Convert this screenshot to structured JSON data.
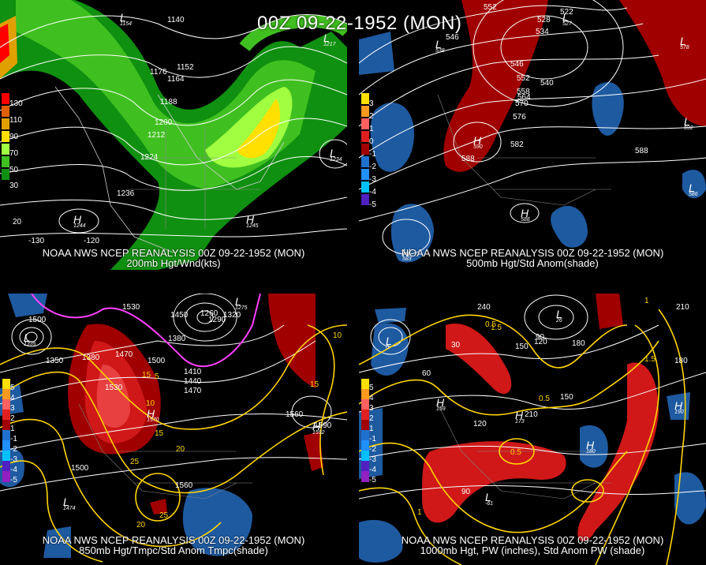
{
  "header": {
    "title": "00Z 09-22-1952 (MON)"
  },
  "panels": [
    {
      "caption1": "NOAA NWS NCEP REANALYSIS 00Z 09-22-1952 (MON)",
      "caption2": "200mb Hgt/Wnd(kts)",
      "legend": [
        "130",
        "110",
        "90",
        "70",
        "50",
        "30"
      ],
      "contours": [
        "1140",
        "1152",
        "1164",
        "1176",
        "1188",
        "1200",
        "1212",
        "1224",
        "1236"
      ],
      "centers": [
        {
          "t": "L",
          "v": "1154"
        },
        {
          "t": "L",
          "v": "1217"
        },
        {
          "t": "L",
          "v": "1234"
        },
        {
          "t": "H",
          "v": "1244"
        },
        {
          "t": "H",
          "v": "1245"
        }
      ],
      "lon": [
        "-130",
        "-120"
      ],
      "lat": "20"
    },
    {
      "caption1": "NOAA NWS NCEP REANALYSIS 00Z 09-22-1952 (MON)",
      "caption2": "500mb Hgt/Std Anom(shade)",
      "legend": [
        "3",
        "2",
        "1",
        "0",
        "-1",
        "-2",
        "-3",
        "-4",
        "-5"
      ],
      "contours": [
        "552",
        "528",
        "522",
        "534",
        "546",
        "540",
        "546",
        "552",
        "558",
        "564",
        "570",
        "576",
        "582",
        "588",
        "588"
      ],
      "centers": [
        {
          "t": "L",
          "v": "538"
        },
        {
          "t": "L",
          "v": "527"
        },
        {
          "t": "L",
          "v": "578"
        },
        {
          "t": "L",
          "v": "592"
        },
        {
          "t": "L",
          "v": "586"
        },
        {
          "t": "H",
          "v": "590"
        },
        {
          "t": "H",
          "v": "588"
        },
        {
          "t": "H",
          "v": "583"
        }
      ]
    },
    {
      "caption1": "NOAA NWS NCEP REANALYSIS 00Z 09-22-1952 (MON)",
      "caption2": "850mb Hgt/Tmpc/Std Anom Tmpc(shade)",
      "legend": [
        "5",
        "4",
        "3",
        "2",
        "1",
        "-1",
        "-2",
        "-3",
        "-4",
        "-5"
      ],
      "height_labels": [
        "1530",
        "1500",
        "1350",
        "1380",
        "1470",
        "1530",
        "1500",
        "1410",
        "1440",
        "1470",
        "1380",
        "1290",
        "1260",
        "1320",
        "1560",
        "1590",
        "1500",
        "1560",
        "1450"
      ],
      "temp_labels": [
        "15",
        "10",
        "5",
        "15",
        "10",
        "25",
        "20",
        "15",
        "25",
        "20"
      ],
      "centers": [
        {
          "t": "L",
          "v": "1335"
        },
        {
          "t": "L",
          "v": "1275"
        },
        {
          "t": "L",
          "v": "1474"
        },
        {
          "t": "H",
          "v": "1570"
        },
        {
          "t": "H",
          "v": "1592"
        }
      ]
    },
    {
      "caption1": "NOAA NWS NCEP REANALYSIS 00Z 09-22-1952 (MON)",
      "caption2": "1000mb Hgt, PW (inches), Std Anom PW (shade)",
      "legend": [
        "5",
        "4",
        "3",
        "2",
        "1",
        "-1",
        "-2",
        "-3",
        "-4",
        "-5"
      ],
      "height_labels": [
        "240",
        "210",
        "180",
        "150",
        "120",
        "90",
        "60",
        "30",
        "120",
        "150",
        "210",
        "180",
        "90"
      ],
      "pw_labels": [
        "0.5",
        "1",
        "1.5",
        "0.5",
        "1.5",
        "0.5",
        "1"
      ],
      "centers": [
        {
          "t": "L",
          "v": "0"
        },
        {
          "t": "L",
          "v": "26"
        },
        {
          "t": "L",
          "v": "-61"
        },
        {
          "t": "H",
          "v": "159"
        },
        {
          "t": "H",
          "v": "173"
        },
        {
          "t": "H",
          "v": "180"
        },
        {
          "t": "H",
          "v": "190"
        }
      ]
    }
  ],
  "colors": {
    "wind_scale": [
      "#ff0000",
      "#e06000",
      "#e0a000",
      "#ffe000",
      "#a0ff40",
      "#40c020",
      "#109010"
    ],
    "anom_pos": [
      "#ffe000",
      "#ff9a20",
      "#ff6060",
      "#e02020",
      "#a00000"
    ],
    "anom_neg": [
      "#2070d0",
      "#2090ff",
      "#00c0ff",
      "#5020c0",
      "#9020c0"
    ],
    "contour": "#ffffff",
    "temp": "#ffd400",
    "freezing": "#ff40ff",
    "anom_red": "#d01818",
    "anom_blue": "#1e5aa0"
  }
}
